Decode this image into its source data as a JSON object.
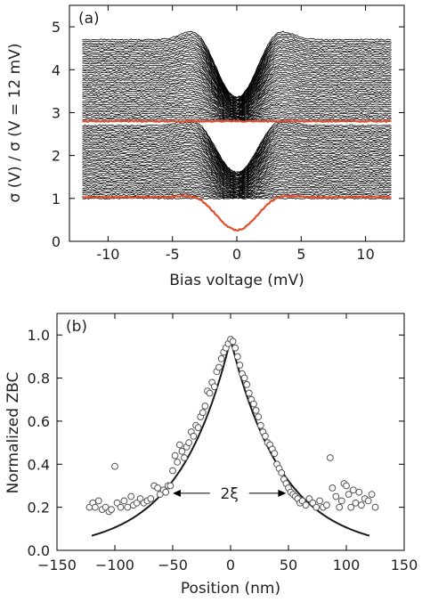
{
  "chart_data": [
    {
      "panel_label": "(a)",
      "type": "line",
      "xlabel": "Bias voltage (mV)",
      "ylabel": "σ (V) / σ (V = 12 mV)",
      "xlim": [
        -13,
        13
      ],
      "ylim": [
        0,
        5.5
      ],
      "xticks": [
        -10,
        -5,
        0,
        5,
        10
      ],
      "yticks": [
        0,
        1,
        2,
        3,
        4,
        5
      ],
      "x_range": [
        -12,
        12
      ],
      "line_color": "#000000",
      "highlight_color": "#e0502e",
      "stack_upper": {
        "count": 45,
        "offset_min": 2.8,
        "offset_max": 4.7,
        "dip_depth_min": 0.0,
        "dip_depth_max": 1.35,
        "coherence_peak_max": 0.32
      },
      "stack_lower": {
        "count": 42,
        "offset_min": 1.0,
        "offset_max": 2.7,
        "dip_depth_min": 0.0,
        "dip_depth_max": 1.1,
        "coherence_peak_max": 0.22
      },
      "highlighted_series": [
        {
          "offset": 2.8,
          "dip_depth": 0.0,
          "peak_height": 0.0
        },
        {
          "offset": 1.03,
          "dip_depth": 0.77,
          "peak_height": 0.08
        }
      ]
    },
    {
      "panel_label": "(b)",
      "type": "scatter",
      "xlabel": "Position (nm)",
      "ylabel": "Normalized ZBC",
      "xlim": [
        -150,
        150
      ],
      "ylim": [
        0.0,
        1.1
      ],
      "xticks": [
        -150,
        -100,
        -50,
        0,
        50,
        100,
        150
      ],
      "yticks": [
        0.0,
        0.2,
        0.4,
        0.6,
        0.8,
        1.0
      ],
      "xtick_labels": [
        "−150",
        "−100",
        "−50",
        "0",
        "50",
        "100",
        "150"
      ],
      "ytick_labels": [
        "0.0",
        "0.2",
        "0.4",
        "0.6",
        "0.8",
        "1.0"
      ],
      "annotation": "2ξ",
      "annotation_arrow_x": [
        -50,
        48
      ],
      "annotation_arrow_y": 0.265,
      "fit_curve": {
        "type": "exponential_decay",
        "amplitude": 0.98,
        "decay_length_nm": 45,
        "x_range": [
          -120,
          120
        ]
      },
      "points": [
        [
          -122,
          0.2
        ],
        [
          -119,
          0.22
        ],
        [
          -117,
          0.2
        ],
        [
          -114,
          0.23
        ],
        [
          -111,
          0.19
        ],
        [
          -108,
          0.2
        ],
        [
          -105,
          0.18
        ],
        [
          -103,
          0.19
        ],
        [
          -100,
          0.39
        ],
        [
          -98,
          0.22
        ],
        [
          -95,
          0.2
        ],
        [
          -92,
          0.23
        ],
        [
          -89,
          0.2
        ],
        [
          -86,
          0.25
        ],
        [
          -84,
          0.21
        ],
        [
          -81,
          0.22
        ],
        [
          -78,
          0.24
        ],
        [
          -75,
          0.22
        ],
        [
          -72,
          0.23
        ],
        [
          -69,
          0.24
        ],
        [
          -66,
          0.3
        ],
        [
          -63,
          0.29
        ],
        [
          -61,
          0.26
        ],
        [
          -58,
          0.28
        ],
        [
          -56,
          0.27
        ],
        [
          -54,
          0.3
        ],
        [
          -52,
          0.3
        ],
        [
          -50,
          0.37
        ],
        [
          -48,
          0.44
        ],
        [
          -46,
          0.41
        ],
        [
          -44,
          0.49
        ],
        [
          -42,
          0.46
        ],
        [
          -40,
          0.43
        ],
        [
          -38,
          0.48
        ],
        [
          -36,
          0.5
        ],
        [
          -34,
          0.55
        ],
        [
          -32,
          0.53
        ],
        [
          -30,
          0.58
        ],
        [
          -28,
          0.57
        ],
        [
          -26,
          0.62
        ],
        [
          -24,
          0.64
        ],
        [
          -22,
          0.67
        ],
        [
          -20,
          0.74
        ],
        [
          -18,
          0.73
        ],
        [
          -16,
          0.78
        ],
        [
          -14,
          0.76
        ],
        [
          -12,
          0.83
        ],
        [
          -10,
          0.85
        ],
        [
          -8,
          0.89
        ],
        [
          -6,
          0.92
        ],
        [
          -4,
          0.94
        ],
        [
          -2,
          0.96
        ],
        [
          0,
          0.98
        ],
        [
          2,
          0.97
        ],
        [
          4,
          0.94
        ],
        [
          6,
          0.9
        ],
        [
          8,
          0.86
        ],
        [
          10,
          0.82
        ],
        [
          12,
          0.8
        ],
        [
          14,
          0.77
        ],
        [
          16,
          0.73
        ],
        [
          18,
          0.7
        ],
        [
          20,
          0.68
        ],
        [
          22,
          0.65
        ],
        [
          24,
          0.62
        ],
        [
          26,
          0.58
        ],
        [
          28,
          0.55
        ],
        [
          30,
          0.53
        ],
        [
          32,
          0.5
        ],
        [
          34,
          0.49
        ],
        [
          36,
          0.47
        ],
        [
          38,
          0.45
        ],
        [
          40,
          0.4
        ],
        [
          42,
          0.38
        ],
        [
          44,
          0.36
        ],
        [
          46,
          0.33
        ],
        [
          48,
          0.31
        ],
        [
          50,
          0.29
        ],
        [
          52,
          0.27
        ],
        [
          54,
          0.26
        ],
        [
          56,
          0.25
        ],
        [
          58,
          0.24
        ],
        [
          60,
          0.22
        ],
        [
          62,
          0.23
        ],
        [
          65,
          0.21
        ],
        [
          68,
          0.24
        ],
        [
          71,
          0.22
        ],
        [
          74,
          0.2
        ],
        [
          77,
          0.23
        ],
        [
          80,
          0.2
        ],
        [
          83,
          0.21
        ],
        [
          86,
          0.43
        ],
        [
          88,
          0.29
        ],
        [
          91,
          0.25
        ],
        [
          94,
          0.2
        ],
        [
          96,
          0.23
        ],
        [
          98,
          0.31
        ],
        [
          100,
          0.3
        ],
        [
          102,
          0.26
        ],
        [
          104,
          0.2
        ],
        [
          106,
          0.28
        ],
        [
          108,
          0.22
        ],
        [
          111,
          0.27
        ],
        [
          113,
          0.21
        ],
        [
          116,
          0.24
        ],
        [
          119,
          0.23
        ],
        [
          122,
          0.26
        ],
        [
          125,
          0.2
        ]
      ]
    }
  ]
}
